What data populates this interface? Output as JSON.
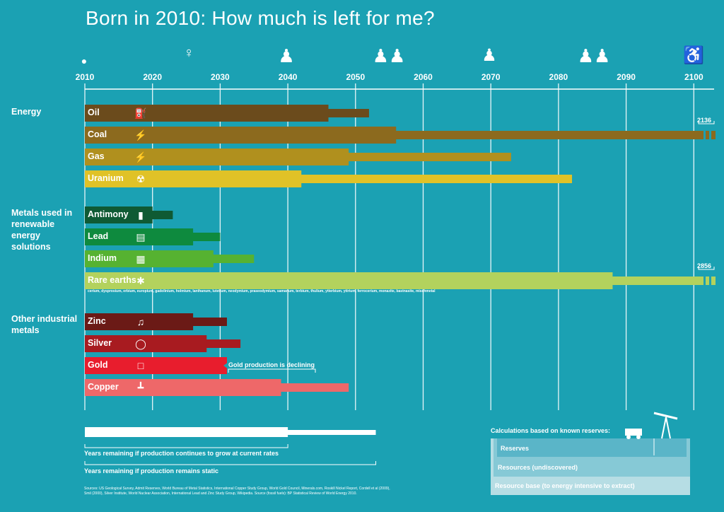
{
  "title": "Born in 2010: How much is left for me?",
  "chart_data": {
    "type": "bar",
    "x_axis_ticks": [
      "2010",
      "2020",
      "2030",
      "2040",
      "2050",
      "2060",
      "2070",
      "2080",
      "2090",
      "2100"
    ],
    "xlim": [
      2010,
      2103
    ],
    "groups": [
      {
        "label": "Energy"
      },
      {
        "label": "Metals used in renewable energy solutions"
      },
      {
        "label": "Other industrial metals"
      }
    ],
    "series_meaning": {
      "growth": "Years remaining if production continues to grow at current rates",
      "static": "Years remaining if production remains static"
    },
    "rows": [
      {
        "label": "Oil",
        "group": "Energy",
        "growth_end": 2046,
        "static_end": 2052,
        "color": "#6b4b1c",
        "icon": "fuel-pump-icon"
      },
      {
        "label": "Coal",
        "group": "Energy",
        "growth_end": 2056,
        "static_end": 2136,
        "static_label": "2136",
        "color": "#8c6a1e",
        "icon": "lightning-icon"
      },
      {
        "label": "Gas",
        "group": "Energy",
        "growth_end": 2049,
        "static_end": 2073,
        "color": "#b0901e",
        "icon": "lightning-icon"
      },
      {
        "label": "Uranium",
        "group": "Energy",
        "growth_end": 2042,
        "static_end": 2082,
        "color": "#e0c227",
        "icon": "radiation-icon"
      },
      {
        "label": "Antimony",
        "group": "Metals used in renewable energy solutions",
        "growth_end": 2020,
        "static_end": 2023,
        "color": "#0f5a34",
        "icon": "battery-icon"
      },
      {
        "label": "Lead",
        "group": "Metals used in renewable energy solutions",
        "growth_end": 2026,
        "static_end": 2030,
        "color": "#0e8a3e",
        "icon": "car-battery-icon"
      },
      {
        "label": "Indium",
        "group": "Metals used in renewable energy solutions",
        "growth_end": 2029,
        "static_end": 2035,
        "color": "#56b231",
        "icon": "solar-panel-icon"
      },
      {
        "label": "Rare earths",
        "group": "Metals used in renewable energy solutions",
        "growth_end": 2088,
        "static_end": 2856,
        "static_label": "2856",
        "color": "#b3d25d",
        "icon": "wind-turbine-icon",
        "note": "cerium, dysprosium, erbium, europium, gadolinium, holmium, lanthanum, lutetium, neodymium, praseodymium, samarium, terbium, thulium, ytterbium, yttrium, ferrocerium, monazite, bastnasite, mischmetal"
      },
      {
        "label": "Zinc",
        "group": "Other industrial metals",
        "growth_end": 2026,
        "static_end": 2031,
        "color": "#6b1a16",
        "icon": "saxophone-icon"
      },
      {
        "label": "Silver",
        "group": "Other industrial metals",
        "growth_end": 2028,
        "static_end": 2033,
        "color": "#a81b20",
        "icon": "ring-icon"
      },
      {
        "label": "Gold",
        "group": "Other industrial metals",
        "growth_end": 2031,
        "static_end": 2031,
        "color": "#e81d2d",
        "icon": "phone-icon",
        "annotation": "Gold production is declining"
      },
      {
        "label": "Copper",
        "group": "Other industrial metals",
        "growth_end": 2039,
        "static_end": 2049,
        "color": "#ee6869",
        "icon": "pipe-valve-icon"
      }
    ]
  },
  "legend": {
    "growth_text": "Years remaining if production continues to grow at current rates",
    "static_text": "Years remaining if production remains static",
    "calc_title": "Calculations based on known reserves:",
    "reserves": "Reserves",
    "resources": "Resources (undiscovered)",
    "resource_base": "Resource base (to energy intensive to extract)"
  },
  "sources": "Sources: US Geological Survey, Admit Reserves, World Bureau of Metal Statistics, International Copper Study Group, World Gold Council, Minerals.com, Roskill Nickel Report, Cordell et al (2009), Smil (2000), Silver Institute, World Nuclear Association, International Lead and Zinc Study Group, Wikipedia. Source (fossil fuels): BP Statistical Review of World Energy 2010.",
  "icons": {
    "timeline_figures": [
      "baby-icon",
      "child-icon",
      "mother-child-icon",
      "family-icon",
      "elderly-icon",
      "elderly-couple-icon",
      "wheelchair-icon"
    ],
    "legend": [
      "mining-truck-icon",
      "oil-derrick-icon"
    ]
  }
}
